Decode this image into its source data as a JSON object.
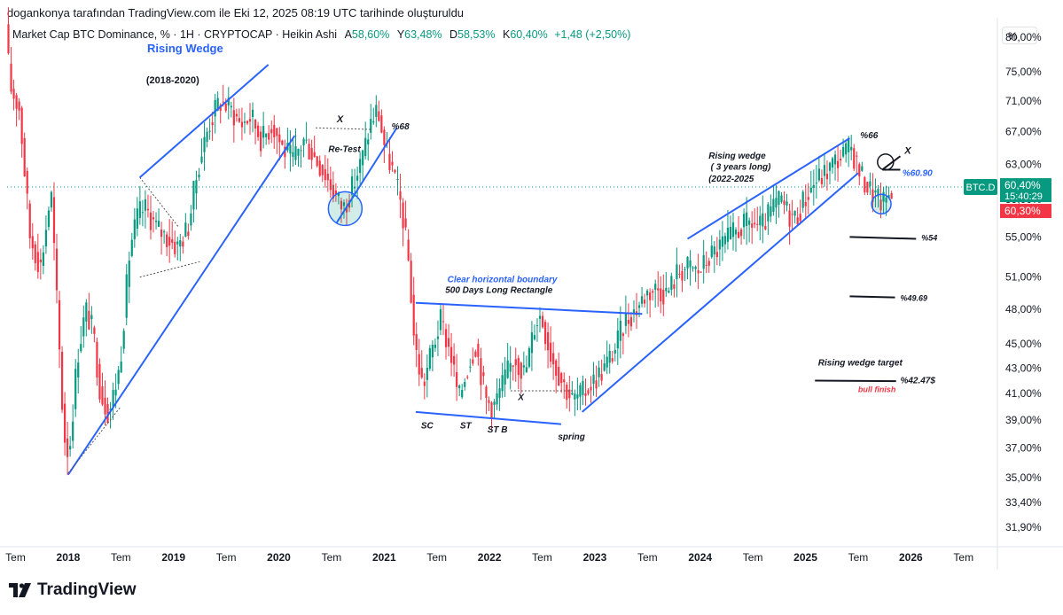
{
  "caption": "dogankonya tarafından TradingView.com ile Eki 12, 2025 08:19 UTC tarihinde oluşturuldu",
  "legend": {
    "title": "Market Cap BTC Dominance, % · 1H · CRYPTOCAP · Heikin Ashi",
    "a_label": "A",
    "a_value": "58,60%",
    "y_label": "Y",
    "y_value": "63,48%",
    "d_label": "D",
    "d_value": "58,53%",
    "k_label": "K",
    "k_value": "60,40%",
    "change": "+1,48 (+2,50%)"
  },
  "unit_button": "%",
  "brand": "TradingView",
  "colors": {
    "up": "#089981",
    "down": "#f23645",
    "line": "#2962ff",
    "text": "#131722",
    "blue_text": "#2962ff",
    "red_text": "#f23645"
  },
  "chart_data": {
    "type": "candlestick",
    "symbol_label": "BTC.D",
    "price_tag": "60,40%",
    "countdown": "15:40:29",
    "low_tag": "60,30%",
    "y_scale": "log",
    "ylim": [
      31.0,
      83.0
    ],
    "y_ticks": [
      "80,00%",
      "75,00%",
      "71,00%",
      "67,00%",
      "63,00%",
      "59,00%",
      "55,00%",
      "51,00%",
      "48,00%",
      "45,00%",
      "43,00%",
      "41,00%",
      "39,00%",
      "37,00%",
      "35,00%",
      "33,40%",
      "31,90%"
    ],
    "y_tick_values": [
      80,
      75,
      71,
      67,
      63,
      59,
      55,
      51,
      48,
      45,
      43,
      41,
      39,
      37,
      35,
      33.4,
      31.9
    ],
    "x_ticks": [
      "Tem",
      "2018",
      "Tem",
      "2019",
      "Tem",
      "2020",
      "Tem",
      "2021",
      "Tem",
      "2022",
      "Tem",
      "2023",
      "Tem",
      "2024",
      "Tem",
      "2025",
      "Tem",
      "2026",
      "Tem"
    ],
    "x_tick_dates": [
      2017.5,
      2018.0,
      2018.5,
      2019.0,
      2019.5,
      2020.0,
      2020.5,
      2021.0,
      2021.5,
      2022.0,
      2022.5,
      2023.0,
      2023.5,
      2024.0,
      2024.5,
      2025.0,
      2025.5,
      2026.0,
      2026.5
    ],
    "xlim": [
      2017.42,
      2026.78
    ],
    "series_path": [
      [
        2017.42,
        82
      ],
      [
        2017.46,
        73
      ],
      [
        2017.55,
        70
      ],
      [
        2017.6,
        62
      ],
      [
        2017.65,
        55
      ],
      [
        2017.75,
        52
      ],
      [
        2017.85,
        60
      ],
      [
        2017.92,
        46
      ],
      [
        2017.97,
        38
      ],
      [
        2018.02,
        36.5
      ],
      [
        2018.1,
        44
      ],
      [
        2018.18,
        48
      ],
      [
        2018.25,
        46
      ],
      [
        2018.32,
        41
      ],
      [
        2018.4,
        39.5
      ],
      [
        2018.5,
        43
      ],
      [
        2018.6,
        54
      ],
      [
        2018.68,
        57.5
      ],
      [
        2018.75,
        58
      ],
      [
        2018.85,
        56
      ],
      [
        2018.95,
        55
      ],
      [
        2019.05,
        54
      ],
      [
        2019.15,
        56
      ],
      [
        2019.25,
        63
      ],
      [
        2019.35,
        68
      ],
      [
        2019.45,
        71
      ],
      [
        2019.55,
        70
      ],
      [
        2019.65,
        68
      ],
      [
        2019.75,
        69
      ],
      [
        2019.85,
        66
      ],
      [
        2019.95,
        68
      ],
      [
        2020.05,
        65
      ],
      [
        2020.15,
        63.5
      ],
      [
        2020.25,
        66
      ],
      [
        2020.35,
        64
      ],
      [
        2020.45,
        62
      ],
      [
        2020.55,
        59.5
      ],
      [
        2020.62,
        58
      ],
      [
        2020.7,
        60
      ],
      [
        2020.8,
        63.5
      ],
      [
        2020.88,
        68
      ],
      [
        2020.95,
        70
      ],
      [
        2021.02,
        65
      ],
      [
        2021.1,
        62
      ],
      [
        2021.18,
        58
      ],
      [
        2021.25,
        52
      ],
      [
        2021.3,
        45
      ],
      [
        2021.38,
        41.5
      ],
      [
        2021.45,
        44
      ],
      [
        2021.55,
        47
      ],
      [
        2021.65,
        44
      ],
      [
        2021.72,
        40.5
      ],
      [
        2021.8,
        43
      ],
      [
        2021.88,
        45
      ],
      [
        2021.98,
        40.5
      ],
      [
        2022.05,
        40
      ],
      [
        2022.15,
        42
      ],
      [
        2022.25,
        44
      ],
      [
        2022.35,
        42.5
      ],
      [
        2022.45,
        47
      ],
      [
        2022.5,
        47.5
      ],
      [
        2022.6,
        44
      ],
      [
        2022.7,
        42
      ],
      [
        2022.8,
        40.5
      ],
      [
        2022.9,
        41
      ],
      [
        2023.0,
        42
      ],
      [
        2023.1,
        43
      ],
      [
        2023.2,
        44.5
      ],
      [
        2023.3,
        47
      ],
      [
        2023.4,
        48
      ],
      [
        2023.5,
        49.5
      ],
      [
        2023.6,
        50
      ],
      [
        2023.7,
        49.5
      ],
      [
        2023.8,
        51.5
      ],
      [
        2023.9,
        52
      ],
      [
        2024.0,
        51.5
      ],
      [
        2024.1,
        53
      ],
      [
        2024.2,
        54
      ],
      [
        2024.3,
        55
      ],
      [
        2024.4,
        56
      ],
      [
        2024.5,
        56.5
      ],
      [
        2024.6,
        56
      ],
      [
        2024.7,
        58
      ],
      [
        2024.78,
        59
      ],
      [
        2024.85,
        57.5
      ],
      [
        2024.92,
        57
      ],
      [
        2025.0,
        59
      ],
      [
        2025.1,
        61
      ],
      [
        2025.2,
        62
      ],
      [
        2025.3,
        63.5
      ],
      [
        2025.4,
        64.5
      ],
      [
        2025.45,
        65
      ],
      [
        2025.5,
        63
      ],
      [
        2025.55,
        61.5
      ],
      [
        2025.6,
        60.5
      ],
      [
        2025.65,
        59.8
      ],
      [
        2025.7,
        59
      ],
      [
        2025.75,
        58.6
      ],
      [
        2025.8,
        59.6
      ],
      [
        2025.83,
        60.4
      ]
    ],
    "trend_lines": [
      {
        "points": [
          [
            2018.0,
            35.2
          ],
          [
            2020.15,
            66.5
          ]
        ],
        "dotted": false
      },
      {
        "points": [
          [
            2018.68,
            61.5
          ],
          [
            2019.9,
            76
          ]
        ],
        "dotted": false
      },
      {
        "points": [
          [
            2020.55,
            56.5
          ],
          [
            2021.12,
            67.5
          ]
        ],
        "dotted": false
      },
      {
        "points": [
          [
            2021.3,
            48.6
          ],
          [
            2023.45,
            47.6
          ]
        ],
        "dotted": false
      },
      {
        "points": [
          [
            2021.3,
            39.6
          ],
          [
            2022.68,
            38.7
          ]
        ],
        "dotted": false
      },
      {
        "points": [
          [
            2022.88,
            39.6
          ],
          [
            2025.5,
            62
          ]
        ],
        "dotted": false
      },
      {
        "points": [
          [
            2023.88,
            54.8
          ],
          [
            2025.42,
            66.2
          ]
        ],
        "dotted": false
      },
      {
        "points": [
          [
            2025.42,
            55
          ],
          [
            2026.05,
            54.8
          ]
        ],
        "dotted": false
      },
      {
        "points": [
          [
            2025.42,
            49.2
          ],
          [
            2025.85,
            49.1
          ]
        ],
        "dotted": false
      },
      {
        "points": [
          [
            2025.09,
            42
          ],
          [
            2025.86,
            41.95
          ]
        ],
        "dotted": false
      },
      {
        "points": [
          [
            2025.73,
            62.4
          ],
          [
            2025.9,
            62.4
          ]
        ],
        "dotted": false
      },
      {
        "points": [
          [
            2025.73,
            62.4
          ],
          [
            2025.9,
            64
          ]
        ],
        "dotted": false
      },
      {
        "points": [
          [
            2018.0,
            35.3
          ],
          [
            2018.5,
            40
          ]
        ],
        "dotted": true
      },
      {
        "points": [
          [
            2018.68,
            61.5
          ],
          [
            2019.05,
            56
          ]
        ],
        "dotted": true
      },
      {
        "points": [
          [
            2018.68,
            51
          ],
          [
            2019.25,
            52.5
          ]
        ],
        "dotted": true
      },
      {
        "points": [
          [
            2020.35,
            67.5
          ],
          [
            2020.88,
            67.3
          ]
        ],
        "dotted": true
      },
      {
        "points": [
          [
            2022.2,
            41.2
          ],
          [
            2022.8,
            41.2
          ]
        ],
        "dotted": true
      }
    ],
    "circles": [
      {
        "at": [
          2020.63,
          58.0
        ],
        "r": 19,
        "fill": "rgba(8,153,129,0.18)",
        "stroke": "#2962ff"
      },
      {
        "at": [
          2025.72,
          58.5
        ],
        "r": 11,
        "fill": "rgba(8,153,129,0.18)",
        "stroke": "#2962ff"
      },
      {
        "at": [
          2025.76,
          63.3
        ],
        "r": 9,
        "fill": "none",
        "stroke": "#131722"
      }
    ],
    "annotations": [
      {
        "text": "Rising Wedge",
        "at": [
          2018.75,
          77.8
        ],
        "color": "#2962ff",
        "size": 13,
        "italic": false
      },
      {
        "text": "(2018-2020)",
        "at": [
          2018.74,
          73.4
        ],
        "color": "#131722",
        "size": 11,
        "italic": false
      },
      {
        "text": "X",
        "at": [
          2020.55,
          68.2
        ],
        "color": "#131722",
        "size": 11,
        "italic": true
      },
      {
        "text": "Re-Test",
        "at": [
          2020.47,
          64.5
        ],
        "color": "#131722",
        "size": 10,
        "italic": true
      },
      {
        "text": "%68",
        "at": [
          2021.07,
          67.3
        ],
        "color": "#131722",
        "size": 10,
        "italic": true
      },
      {
        "text": "Clear horizontal boundary",
        "at": [
          2021.6,
          50.5
        ],
        "color": "#2962ff",
        "size": 10,
        "italic": true
      },
      {
        "text": "500 Days Long Rectangle",
        "at": [
          2021.58,
          49.5
        ],
        "color": "#131722",
        "size": 10,
        "italic": true
      },
      {
        "text": "SC",
        "at": [
          2021.35,
          38.4
        ],
        "color": "#131722",
        "size": 10,
        "italic": true
      },
      {
        "text": "ST",
        "at": [
          2021.72,
          38.4
        ],
        "color": "#131722",
        "size": 10,
        "italic": true
      },
      {
        "text": "ST B",
        "at": [
          2021.98,
          38.1
        ],
        "color": "#131722",
        "size": 10,
        "italic": true
      },
      {
        "text": "X",
        "at": [
          2022.27,
          40.5
        ],
        "color": "#131722",
        "size": 10,
        "italic": true
      },
      {
        "text": "spring",
        "at": [
          2022.65,
          37.6
        ],
        "color": "#131722",
        "size": 10,
        "italic": true
      },
      {
        "text": "Rising wedge",
        "at": [
          2024.08,
          63.7
        ],
        "color": "#131722",
        "size": 10,
        "italic": true
      },
      {
        "text": "( 3 years long)",
        "at": [
          2024.1,
          62.4
        ],
        "color": "#131722",
        "size": 10,
        "italic": true
      },
      {
        "text": "(2022-2025",
        "at": [
          2024.08,
          61.0
        ],
        "color": "#131722",
        "size": 10,
        "italic": true
      },
      {
        "text": "%66",
        "at": [
          2025.52,
          66.2
        ],
        "color": "#131722",
        "size": 10,
        "italic": true
      },
      {
        "text": "X",
        "at": [
          2025.94,
          64.3
        ],
        "color": "#131722",
        "size": 11,
        "italic": true
      },
      {
        "text": "%60.90",
        "at": [
          2025.92,
          61.7
        ],
        "color": "#2962ff",
        "size": 10,
        "italic": true
      },
      {
        "text": "%54",
        "at": [
          2026.1,
          54.6
        ],
        "color": "#131722",
        "size": 9,
        "italic": true
      },
      {
        "text": "%49.69",
        "at": [
          2025.9,
          48.8
        ],
        "color": "#131722",
        "size": 9,
        "italic": true
      },
      {
        "text": "Rising wedge target",
        "at": [
          2025.12,
          43.2
        ],
        "color": "#131722",
        "size": 10,
        "italic": true
      },
      {
        "text": "%42.47$",
        "at": [
          2025.9,
          41.8
        ],
        "color": "#131722",
        "size": 10,
        "italic": true
      },
      {
        "text": "bull finish",
        "at": [
          2025.5,
          41.1
        ],
        "color": "#f23645",
        "size": 9,
        "italic": true
      }
    ],
    "current_value": 60.4
  }
}
